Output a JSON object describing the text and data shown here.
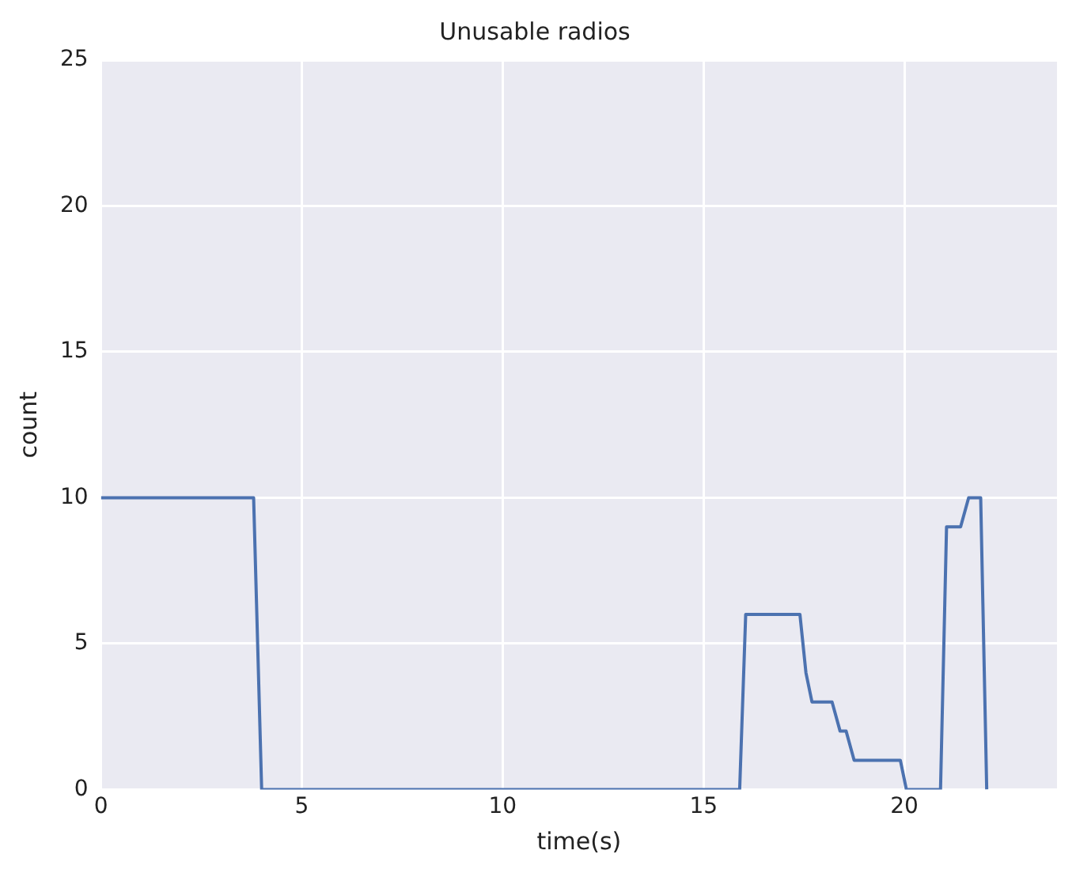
{
  "chart_data": {
    "type": "line",
    "title": "Unusable radios",
    "xlabel": "time(s)",
    "ylabel": "count",
    "x": [
      0,
      3.8,
      4.0,
      15.9,
      16.05,
      17.4,
      17.55,
      17.7,
      18.2,
      18.4,
      18.55,
      18.75,
      19.9,
      20.05,
      20.9,
      21.05,
      21.4,
      21.6,
      21.9,
      22.05
    ],
    "series": [
      {
        "color": "#4c72b0",
        "values": [
          10,
          10,
          0,
          0,
          6,
          6,
          4,
          3,
          3,
          2,
          2,
          1,
          1,
          0,
          0,
          9,
          9,
          10,
          10,
          0
        ]
      }
    ],
    "xlim": [
      0,
      23.8
    ],
    "xticks": [
      0,
      5,
      10,
      15,
      20
    ],
    "ylim": [
      0,
      25
    ],
    "yticks": [
      0,
      5,
      10,
      15,
      20,
      25
    ],
    "grid": true,
    "legend": false,
    "marker": "none",
    "line_style": "solid"
  }
}
